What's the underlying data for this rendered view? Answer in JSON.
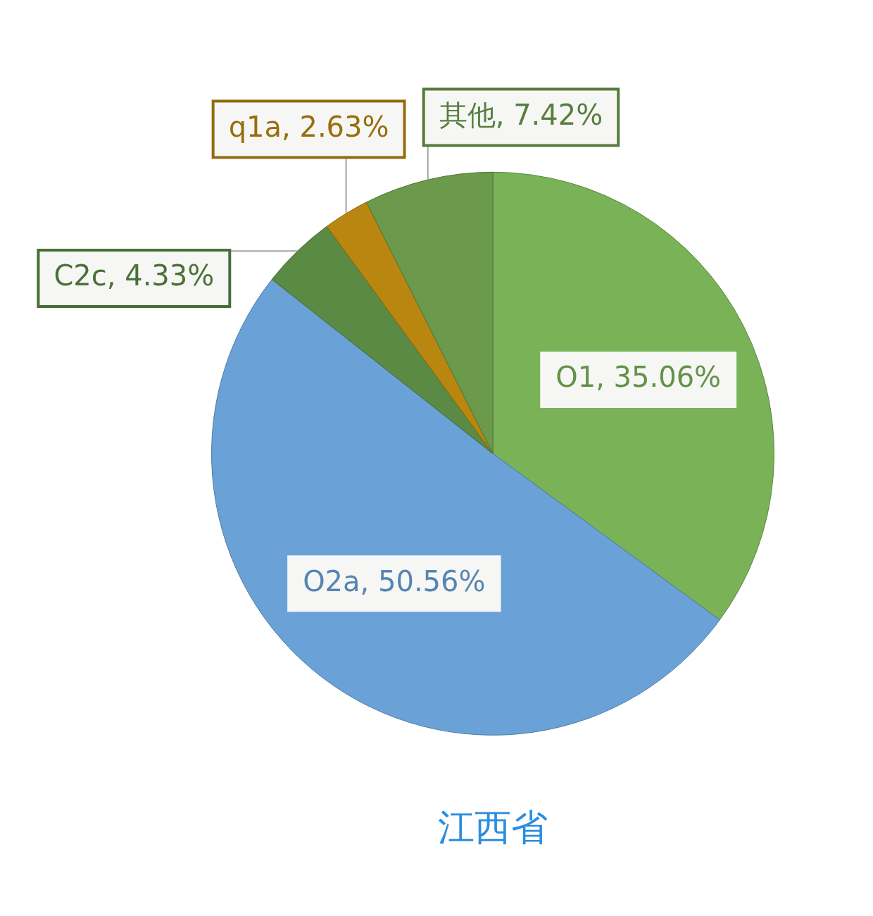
{
  "chart_data": {
    "type": "pie",
    "title": "江西省",
    "categories": [
      "O1",
      "O2a",
      "C2c",
      "q1a",
      "其他"
    ],
    "values": [
      35.06,
      50.56,
      4.33,
      2.63,
      7.42
    ],
    "colors": [
      "#7ab257",
      "#6aa2d8",
      "#5a8a44",
      "#b9860f",
      "#6b9a4c"
    ],
    "value_labels": [
      "35.06%",
      "50.56%",
      "4.33%",
      "2.63%",
      "7.42%"
    ]
  }
}
